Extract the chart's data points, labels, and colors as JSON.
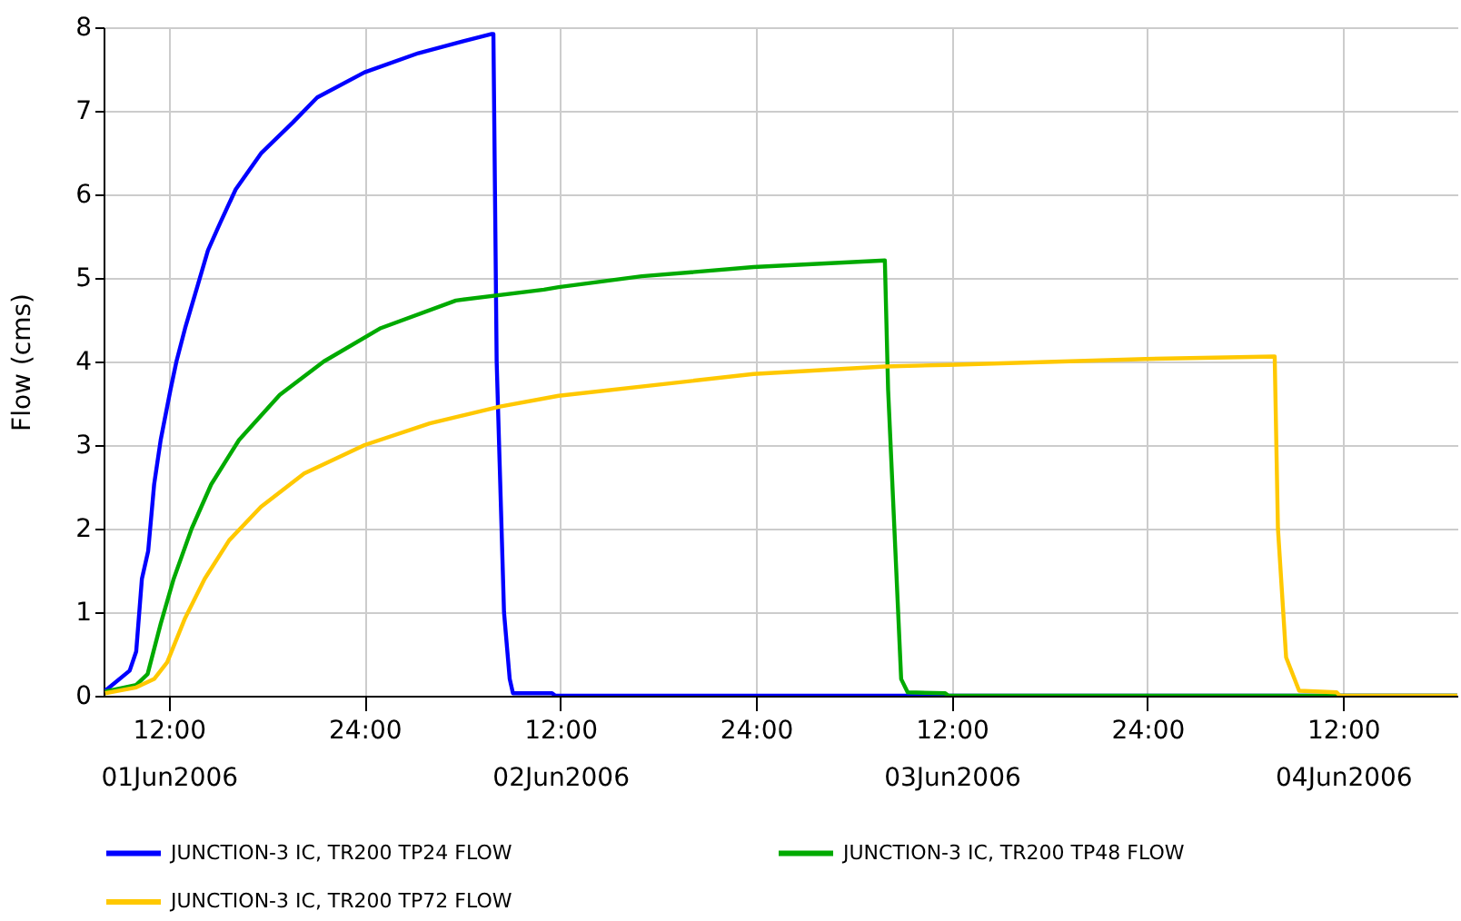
{
  "chart_data": {
    "type": "line",
    "ylabel": "Flow (cms)",
    "xlim": [
      "2006-06-01T08:00",
      "2006-06-04T19:00"
    ],
    "ylim": [
      0,
      8
    ],
    "yticks": [
      0,
      1,
      2,
      3,
      4,
      5,
      6,
      7,
      8
    ],
    "xticks": [
      {
        "value": "2006-06-01T12:00",
        "label": "12:00\n01Jun2006"
      },
      {
        "value": "2006-06-02T00:00",
        "label": "24:00"
      },
      {
        "value": "2006-06-02T12:00",
        "label": "12:00\n02Jun2006"
      },
      {
        "value": "2006-06-03T00:00",
        "label": "24:00"
      },
      {
        "value": "2006-06-03T12:00",
        "label": "12:00\n03Jun2006"
      },
      {
        "value": "2006-06-04T00:00",
        "label": "24:00"
      },
      {
        "value": "2006-06-04T12:00",
        "label": "12:00\n04Jun2006"
      }
    ],
    "grid": true,
    "legend": "bottom",
    "marker": "none",
    "line_style": "solid",
    "series": [
      {
        "name": "JUNCTION-3 IC, TR200 TP24 FLOW",
        "color": "#0000ff",
        "x": [
          "2006-06-01T08:06",
          "2006-06-01T09:36",
          "2006-06-01T10:00",
          "2006-06-01T10:21",
          "2006-06-01T10:44",
          "2006-06-01T11:06",
          "2006-06-01T11:30",
          "2006-06-01T12:06",
          "2006-06-01T12:28",
          "2006-06-01T13:00",
          "2006-06-01T13:48",
          "2006-06-01T14:24",
          "2006-06-01T15:09",
          "2006-06-01T16:06",
          "2006-06-01T17:39",
          "2006-06-01T19:36",
          "2006-06-01T21:06",
          "2006-06-02T00:00",
          "2006-06-02T03:18",
          "2006-06-02T06:00",
          "2006-06-02T07:48",
          "2006-06-02T07:54",
          "2006-06-02T08:06",
          "2006-06-02T08:33",
          "2006-06-02T08:54",
          "2006-06-02T09:06",
          "2006-06-02T11:30",
          "2006-06-02T11:42",
          "2006-06-04T19:00"
        ],
        "values": [
          0.06,
          0.3,
          0.53,
          1.4,
          1.73,
          2.53,
          3.06,
          3.66,
          4.0,
          4.4,
          4.93,
          5.33,
          5.66,
          6.06,
          6.49,
          6.86,
          7.16,
          7.46,
          7.69,
          7.83,
          7.92,
          7.92,
          4.0,
          1.0,
          0.2,
          0.03,
          0.03,
          0,
          0
        ]
      },
      {
        "name": "JUNCTION-3 IC, TR200 TP48 FLOW",
        "color": "#00aa00",
        "x": [
          "2006-06-01T08:06",
          "2006-06-01T10:00",
          "2006-06-01T10:42",
          "2006-06-01T11:30",
          "2006-06-01T12:18",
          "2006-06-01T13:24",
          "2006-06-01T14:36",
          "2006-06-01T16:18",
          "2006-06-01T18:48",
          "2006-06-01T21:30",
          "2006-06-02T01:00",
          "2006-06-02T05:36",
          "2006-06-02T11:00",
          "2006-06-02T11:54",
          "2006-06-02T17:00",
          "2006-06-02T23:51",
          "2006-06-03T07:54",
          "2006-06-03T08:06",
          "2006-06-03T08:54",
          "2006-06-03T09:18",
          "2006-06-03T11:36",
          "2006-06-03T11:48",
          "2006-06-04T19:00"
        ],
        "values": [
          0.05,
          0.13,
          0.26,
          0.86,
          1.4,
          2.0,
          2.53,
          3.06,
          3.6,
          4.0,
          4.4,
          4.73,
          4.86,
          4.89,
          5.02,
          5.13,
          5.21,
          3.66,
          0.2,
          0.04,
          0.03,
          0,
          0
        ]
      },
      {
        "name": "JUNCTION-3 IC, TR200 TP72 FLOW",
        "color": "#ffc800",
        "x": [
          "2006-06-01T08:06",
          "2006-06-01T10:00",
          "2006-06-01T11:06",
          "2006-06-01T11:54",
          "2006-06-01T13:00",
          "2006-06-01T14:12",
          "2006-06-01T15:42",
          "2006-06-01T17:39",
          "2006-06-01T20:18",
          "2006-06-02T00:00",
          "2006-06-02T04:00",
          "2006-06-02T08:18",
          "2006-06-02T11:54",
          "2006-06-02T23:51",
          "2006-06-03T07:54",
          "2006-06-03T11:48",
          "2006-06-03T23:54",
          "2006-06-04T07:48",
          "2006-06-04T08:00",
          "2006-06-04T08:30",
          "2006-06-04T09:18",
          "2006-06-04T11:36",
          "2006-06-04T11:48",
          "2006-06-04T19:00"
        ],
        "values": [
          0.03,
          0.1,
          0.2,
          0.4,
          0.93,
          1.4,
          1.86,
          2.26,
          2.66,
          3.0,
          3.26,
          3.46,
          3.59,
          3.85,
          3.94,
          3.96,
          4.03,
          4.06,
          2.0,
          0.46,
          0.06,
          0.04,
          0,
          0
        ]
      }
    ]
  }
}
